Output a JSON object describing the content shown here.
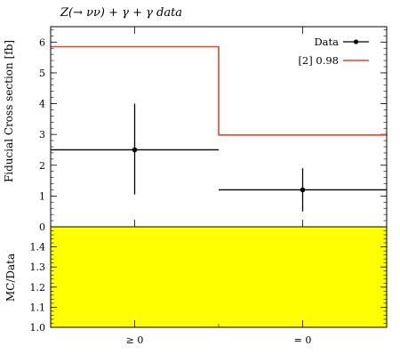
{
  "chart_data": [
    {
      "type": "line",
      "title": "Z(→ νν) + γ + γ data",
      "xlabel": "",
      "ylabel": "Fiducial Cross section [fb]",
      "categories": [
        "≥ 0",
        "= 0"
      ],
      "ylim": [
        0,
        6.5
      ],
      "yticks": [
        "0",
        "1",
        "2",
        "3",
        "4",
        "5",
        "6"
      ],
      "series": [
        {
          "name": "Data",
          "kind": "errorbar",
          "color": "#000000",
          "values": [
            2.5,
            1.2
          ],
          "err_low": [
            1.45,
            0.7
          ],
          "err_high": [
            1.5,
            0.7
          ]
        },
        {
          "name": "[2] 0.98",
          "kind": "step",
          "color": "#e8442c",
          "values": [
            5.85,
            2.98
          ]
        }
      ],
      "legend": "top-right",
      "grid": false
    },
    {
      "type": "area",
      "ylabel": "MC/Data",
      "categories": [
        "≥ 0",
        "= 0"
      ],
      "xticklabels": [
        "≥ 0",
        "= 0"
      ],
      "ylim": [
        1.0,
        1.5
      ],
      "yticks": [
        "1.0",
        "1.1",
        "1.2",
        "1.3",
        "1.4"
      ],
      "band_color": "#ffff00",
      "grid": false
    }
  ]
}
